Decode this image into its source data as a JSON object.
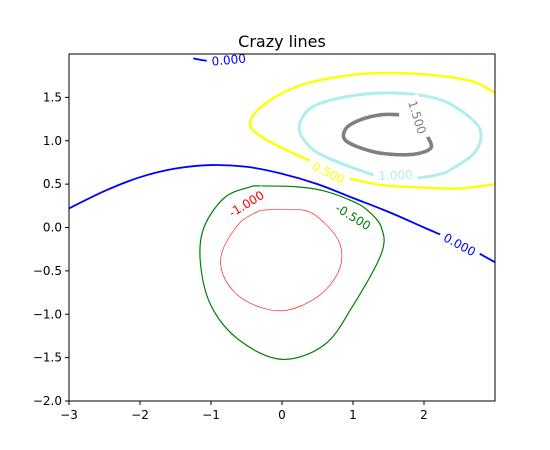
{
  "chart_data": {
    "type": "line",
    "title": "Crazy lines",
    "xlabel": "",
    "ylabel": "",
    "xlim": [
      -3,
      3
    ],
    "ylim": [
      -2,
      2
    ],
    "x_ticks": [
      -3,
      -2,
      -1,
      0,
      1,
      2
    ],
    "x_tick_labels": [
      "−3",
      "−2",
      "−1",
      "0",
      "1",
      "2"
    ],
    "y_ticks": [
      -2.0,
      -1.5,
      -1.0,
      -0.5,
      0.0,
      0.5,
      1.0,
      1.5
    ],
    "y_tick_labels": [
      "−2.0",
      "−1.5",
      "−1.0",
      "−0.5",
      "0.0",
      "0.5",
      "1.0",
      "1.5"
    ],
    "grid": false,
    "contour_levels": [
      {
        "level": -1.0,
        "label": "-1.000",
        "color": "#ff0000"
      },
      {
        "level": -0.5,
        "label": "-0.500",
        "color": "#008000"
      },
      {
        "level": 0.0,
        "label": "0.000",
        "color": "#0000ff"
      },
      {
        "level": 0.5,
        "label": "0.500",
        "color": "#ffff00"
      },
      {
        "level": 1.0,
        "label": "1.000",
        "color": "#afeeee"
      },
      {
        "level": 1.5,
        "label": "1.500",
        "color": "#808080"
      }
    ],
    "series": [
      {
        "label_text": "0.000",
        "color": "#0000ff",
        "segments": [
          [
            [
              -3.0,
              0.22
            ],
            [
              -2.5,
              0.42
            ],
            [
              -2.0,
              0.58
            ],
            [
              -1.5,
              0.68
            ],
            [
              -1.0,
              0.72
            ],
            [
              -0.5,
              0.7
            ],
            [
              0.0,
              0.62
            ],
            [
              0.5,
              0.5
            ],
            [
              1.0,
              0.34
            ],
            [
              1.5,
              0.18
            ],
            [
              2.0,
              0.0
            ],
            [
              2.5,
              -0.18
            ],
            [
              3.0,
              -0.4
            ]
          ],
          [
            [
              -1.25,
              1.95
            ],
            [
              -1.0,
              1.92
            ],
            [
              -0.6,
              1.95
            ]
          ]
        ],
        "labels": [
          {
            "x": 2.5,
            "y": -0.2
          },
          {
            "x": -0.75,
            "y": 1.93
          }
        ]
      },
      {
        "label_text": "-0.500",
        "color": "#008000",
        "segments": [
          [
            [
              -0.4,
              0.48
            ],
            [
              -0.8,
              0.35
            ],
            [
              -1.1,
              0.0
            ],
            [
              -1.15,
              -0.4
            ],
            [
              -1.0,
              -0.9
            ],
            [
              -0.6,
              -1.3
            ],
            [
              0.0,
              -1.52
            ],
            [
              0.6,
              -1.35
            ],
            [
              1.0,
              -0.9
            ],
            [
              1.4,
              -0.3
            ],
            [
              1.4,
              0.0
            ],
            [
              1.2,
              0.2
            ],
            [
              1.0,
              0.3
            ],
            [
              0.6,
              0.42
            ],
            [
              0.2,
              0.47
            ],
            [
              -0.4,
              0.48
            ]
          ]
        ],
        "labels": [
          {
            "x": 1.0,
            "y": 0.12
          }
        ]
      },
      {
        "label_text": "-1.000",
        "color": "#ff0000",
        "segments": [
          [
            [
              -0.3,
              0.2
            ],
            [
              -0.6,
              0.05
            ],
            [
              -0.85,
              -0.3
            ],
            [
              -0.8,
              -0.6
            ],
            [
              -0.5,
              -0.85
            ],
            [
              0.0,
              -0.96
            ],
            [
              0.5,
              -0.8
            ],
            [
              0.8,
              -0.5
            ],
            [
              0.82,
              -0.2
            ],
            [
              0.6,
              0.05
            ],
            [
              0.3,
              0.2
            ],
            [
              -0.3,
              0.2
            ]
          ]
        ],
        "labels": [
          {
            "x": -0.5,
            "y": 0.27
          }
        ]
      },
      {
        "label_text": "0.500",
        "color": "#ffff00",
        "segments": [
          [
            [
              3.0,
              0.5
            ],
            [
              2.5,
              0.45
            ],
            [
              2.0,
              0.46
            ],
            [
              1.5,
              0.48
            ],
            [
              1.2,
              0.52
            ],
            [
              0.9,
              0.58
            ],
            [
              0.6,
              0.7
            ],
            [
              0.2,
              0.84
            ],
            [
              -0.3,
              1.05
            ],
            [
              -0.45,
              1.22
            ],
            [
              -0.2,
              1.45
            ],
            [
              0.3,
              1.65
            ],
            [
              1.0,
              1.76
            ],
            [
              1.6,
              1.78
            ],
            [
              2.2,
              1.75
            ],
            [
              2.7,
              1.68
            ],
            [
              3.0,
              1.55
            ]
          ]
        ],
        "labels": [
          {
            "x": 0.65,
            "y": 0.63
          }
        ]
      },
      {
        "label_text": "1.000",
        "color": "#afeeee",
        "segments": [
          [
            [
              2.3,
              0.63
            ],
            [
              2.0,
              0.58
            ],
            [
              1.5,
              0.56
            ],
            [
              0.6,
              0.82
            ],
            [
              0.3,
              1.02
            ],
            [
              0.25,
              1.2
            ],
            [
              0.45,
              1.4
            ],
            [
              1.0,
              1.52
            ],
            [
              1.6,
              1.55
            ],
            [
              2.2,
              1.48
            ],
            [
              2.6,
              1.3
            ],
            [
              2.8,
              1.1
            ],
            [
              2.7,
              0.85
            ],
            [
              2.3,
              0.63
            ]
          ]
        ],
        "labels": [
          {
            "x": 1.6,
            "y": 0.6
          }
        ]
      },
      {
        "label_text": "1.500",
        "color": "#808080",
        "segments": [
          [
            [
              2.05,
              1.05
            ],
            [
              2.1,
              0.92
            ],
            [
              1.9,
              0.85
            ],
            [
              1.6,
              0.84
            ],
            [
              1.25,
              0.88
            ],
            [
              0.9,
              1.0
            ],
            [
              0.9,
              1.14
            ],
            [
              1.1,
              1.24
            ],
            [
              1.4,
              1.3
            ],
            [
              1.65,
              1.3
            ]
          ]
        ],
        "labels": [
          {
            "x": 1.9,
            "y": 1.27
          }
        ]
      }
    ]
  }
}
